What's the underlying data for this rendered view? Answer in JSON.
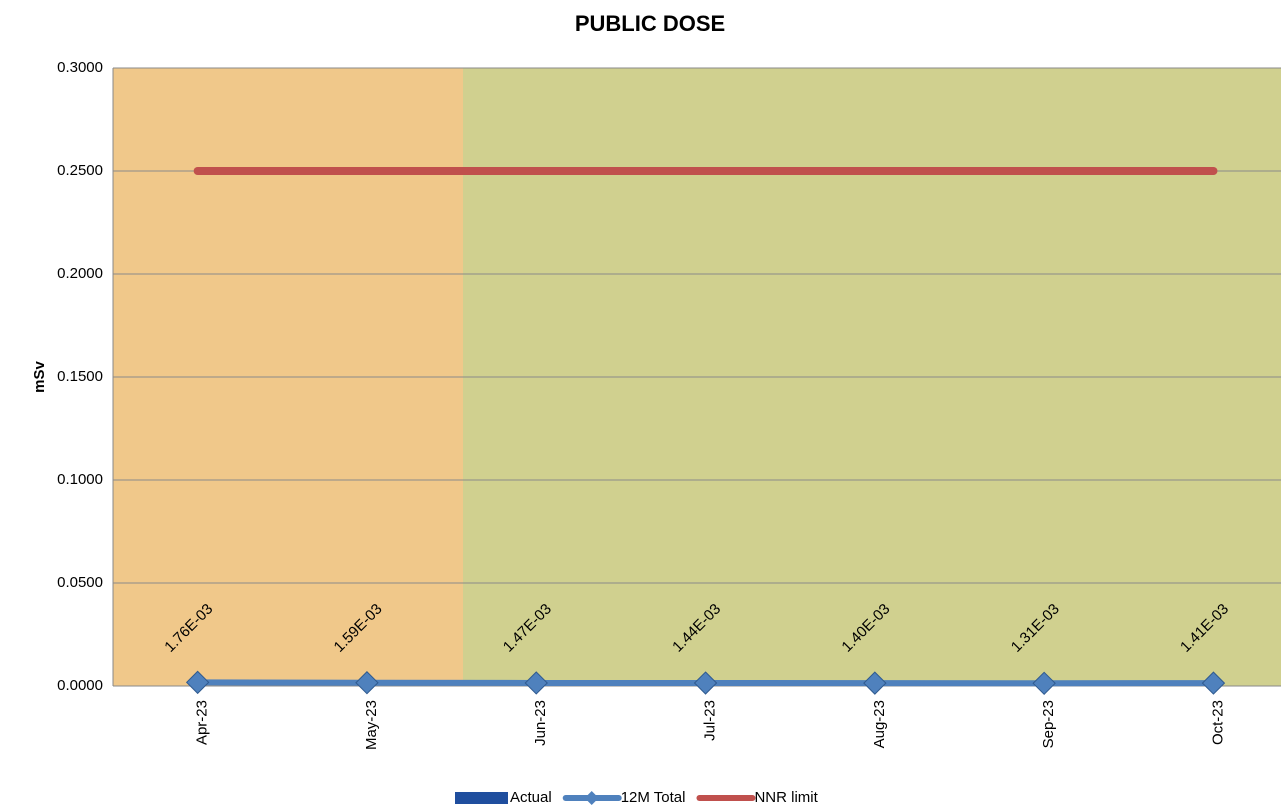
{
  "chart_data": {
    "type": "combo",
    "title": "PUBLIC DOSE",
    "y_label": "mSv",
    "categories": [
      "Apr-23",
      "May-23",
      "Jun-23",
      "Jul-23",
      "Aug-23",
      "Sep-23",
      "Oct-23"
    ],
    "series": [
      {
        "name": "Actual",
        "type": "bar",
        "color": "#1f4e9e",
        "values": [
          0,
          0,
          0,
          0,
          0,
          0,
          0
        ]
      },
      {
        "name": "12M Total",
        "type": "line",
        "color": "#4f81bd",
        "marker": "diamond",
        "values": [
          0.00176,
          0.00159,
          0.00147,
          0.00144,
          0.0014,
          0.00131,
          0.00141
        ],
        "value_labels": [
          "1.76E-03",
          "1.59E-03",
          "1.47E-03",
          "1.44E-03",
          "1.40E-03",
          "1.31E-03",
          "1.41E-03"
        ]
      },
      {
        "name": "NNR limit",
        "type": "line",
        "color": "#c0504d",
        "values": [
          0.25,
          0.25,
          0.25,
          0.25,
          0.25,
          0.25,
          0.25
        ]
      }
    ],
    "ylim": [
      0,
      0.3
    ],
    "yticks": [
      {
        "value": 0,
        "label": "0.0000"
      },
      {
        "value": 0.05,
        "label": "0.0500"
      },
      {
        "value": 0.1,
        "label": "0.1000"
      },
      {
        "value": 0.15,
        "label": "0.1500"
      },
      {
        "value": 0.2,
        "label": "0.2000"
      },
      {
        "value": 0.25,
        "label": "0.2500"
      },
      {
        "value": 0.3,
        "label": "0.3000"
      }
    ],
    "grid": true,
    "legend": "bottom"
  }
}
